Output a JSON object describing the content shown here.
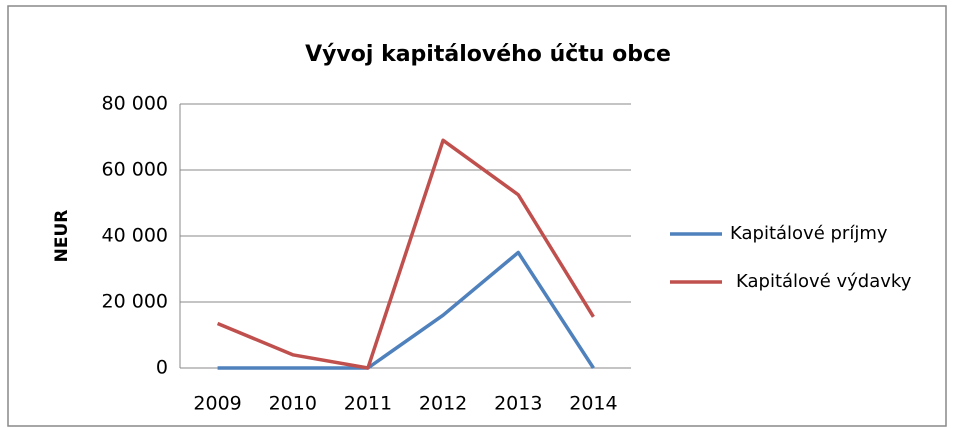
{
  "chart_data": {
    "type": "line",
    "title": "Vývoj kapitálového účtu obce",
    "y_label": "NEUR",
    "categories": [
      "2009",
      "2010",
      "2011",
      "2012",
      "2013",
      "2014"
    ],
    "series": [
      {
        "name": "Kapitálové príjmy",
        "color": "#4f81bd",
        "values": [
          0,
          0,
          0,
          16000,
          35000,
          0
        ]
      },
      {
        "name": "Kapitálové výdavky",
        "color": "#c0504d",
        "values": [
          13500,
          4000,
          0,
          69000,
          52500,
          15500
        ]
      }
    ],
    "ylim": [
      0,
      80000
    ],
    "yticks": [
      0,
      {
        "value": 20000,
        "label": "20 000"
      },
      {
        "value": 40000,
        "label": "40 000"
      },
      {
        "value": 60000,
        "label": "60 000"
      },
      {
        "value": 80000,
        "label": "80 000"
      }
    ],
    "grid": true,
    "legend": "right"
  }
}
